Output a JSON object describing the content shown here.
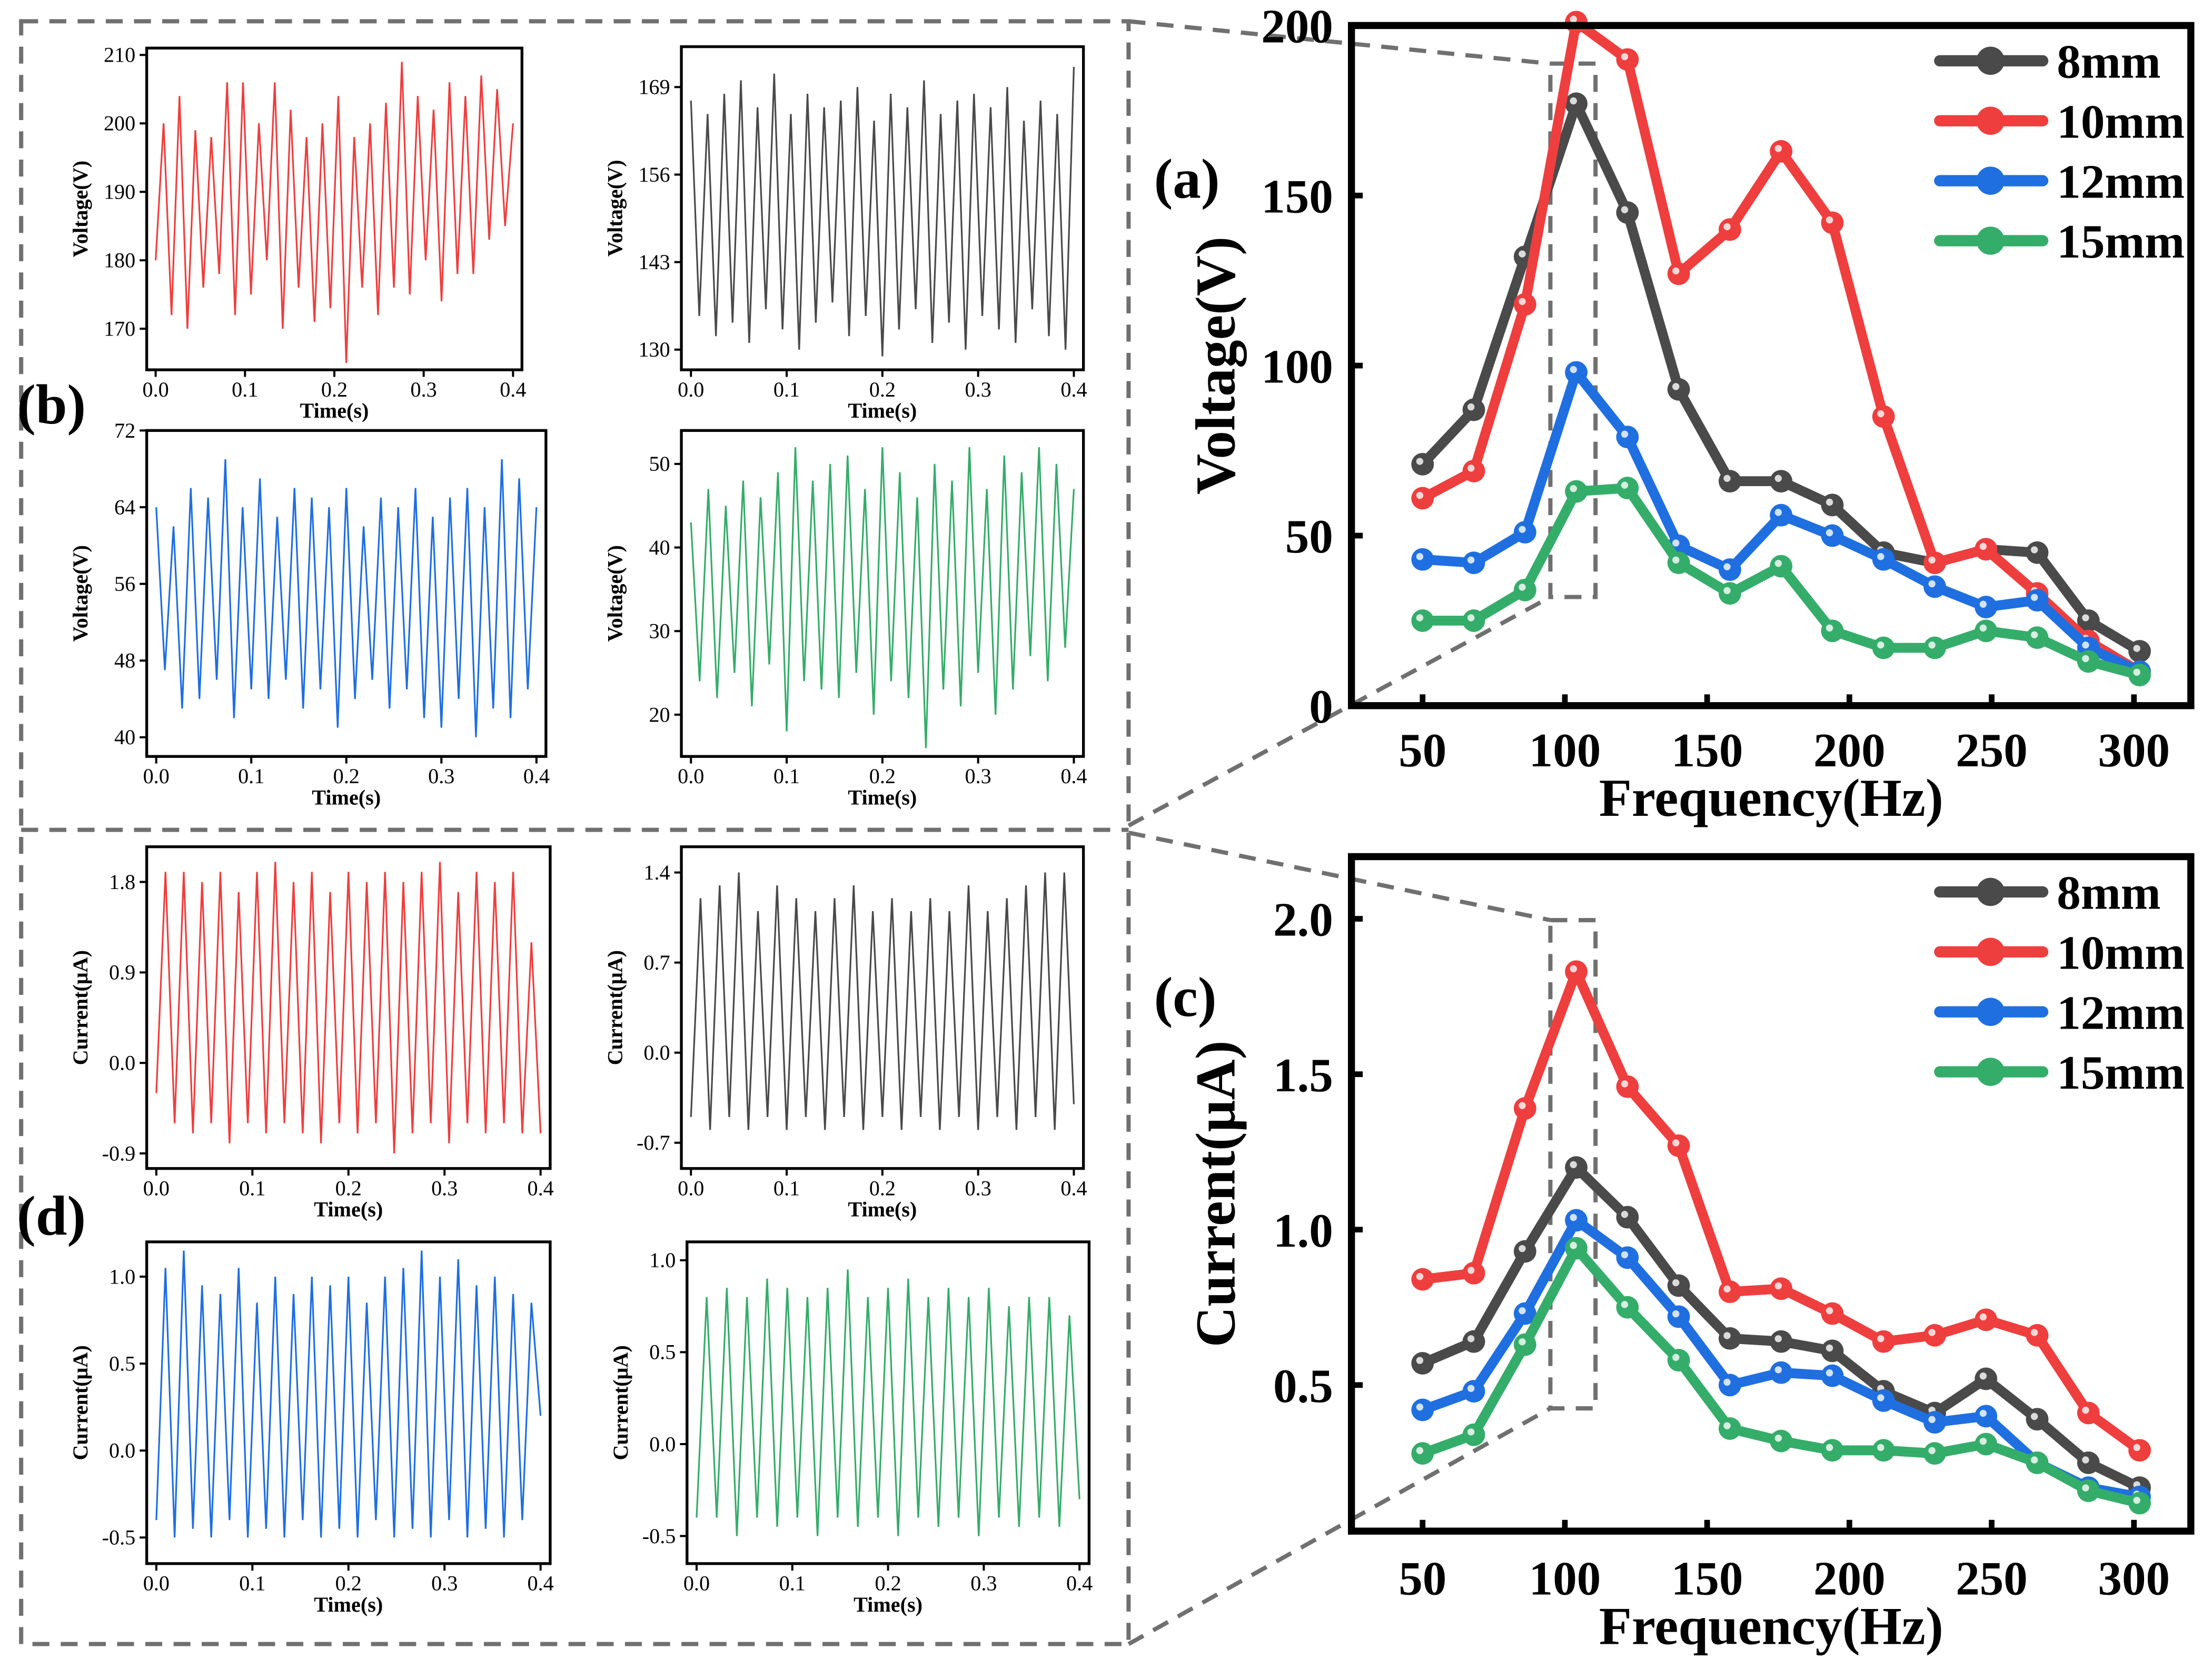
{
  "panel_labels": {
    "a": "(a)",
    "b": "(b)",
    "c": "(c)",
    "d": "(d)"
  },
  "colors": {
    "8mm": "#4a4a4a",
    "10mm": "#ef3e3e",
    "12mm": "#1f6fe0",
    "15mm": "#35ad6a",
    "dashed": "#707070"
  },
  "chart_data": [
    {
      "id": "a",
      "type": "line",
      "xlabel": "Frequency(Hz)",
      "ylabel": "Voltage(V)",
      "xlim": [
        25,
        320
      ],
      "ylim": [
        0,
        200
      ],
      "xticks": [
        50,
        100,
        150,
        200,
        250,
        300
      ],
      "yticks": [
        0,
        50,
        100,
        150,
        200
      ],
      "legend": "top-right",
      "grid": false,
      "x": [
        50,
        68,
        86,
        104,
        122,
        140,
        158,
        176,
        194,
        212,
        230,
        248,
        266,
        284,
        302
      ],
      "series": [
        {
          "name": "8mm",
          "values": [
            71,
            87,
            132,
            177,
            145,
            93,
            66,
            66,
            59,
            45,
            42,
            46,
            45,
            25,
            16
          ]
        },
        {
          "name": "10mm",
          "values": [
            61,
            69,
            118,
            201,
            190,
            127,
            140,
            163,
            142,
            85,
            42,
            46,
            33,
            19,
            10
          ]
        },
        {
          "name": "12mm",
          "values": [
            43,
            42,
            51,
            98,
            79,
            47,
            40,
            56,
            50,
            43,
            35,
            29,
            31,
            17,
            10
          ]
        },
        {
          "name": "15mm",
          "values": [
            25,
            25,
            34,
            63,
            64,
            42,
            33,
            41,
            22,
            17,
            17,
            22,
            20,
            13,
            9
          ]
        }
      ]
    },
    {
      "id": "c",
      "type": "line",
      "xlabel": "Frequency(Hz)",
      "ylabel": "Current(μA)",
      "xlim": [
        25,
        320
      ],
      "ylim": [
        0.03,
        2.2
      ],
      "xticks": [
        50,
        100,
        150,
        200,
        250,
        300
      ],
      "yticks": [
        0.5,
        1.0,
        1.5,
        2.0
      ],
      "legend": "top-right",
      "grid": false,
      "x": [
        50,
        68,
        86,
        104,
        122,
        140,
        158,
        176,
        194,
        212,
        230,
        248,
        266,
        284,
        302
      ],
      "series": [
        {
          "name": "8mm",
          "values": [
            0.57,
            0.64,
            0.93,
            1.2,
            1.04,
            0.82,
            0.65,
            0.64,
            0.61,
            0.48,
            0.41,
            0.52,
            0.39,
            0.25,
            0.17
          ]
        },
        {
          "name": "10mm",
          "values": [
            0.84,
            0.86,
            1.39,
            1.83,
            1.46,
            1.27,
            0.8,
            0.81,
            0.73,
            0.64,
            0.66,
            0.71,
            0.66,
            0.41,
            0.29
          ]
        },
        {
          "name": "12mm",
          "values": [
            0.42,
            0.48,
            0.73,
            1.03,
            0.91,
            0.72,
            0.5,
            0.54,
            0.53,
            0.45,
            0.38,
            0.4,
            0.25,
            0.17,
            0.14
          ]
        },
        {
          "name": "15mm",
          "values": [
            0.28,
            0.34,
            0.63,
            0.94,
            0.75,
            0.58,
            0.36,
            0.32,
            0.29,
            0.29,
            0.28,
            0.31,
            0.25,
            0.16,
            0.12
          ]
        }
      ]
    },
    {
      "id": "b1",
      "type": "line",
      "color": "10mm",
      "xlabel": "Time(s)",
      "ylabel": "Voltage(V)",
      "xlim": [
        -0.01,
        0.41
      ],
      "ylim": [
        164,
        211
      ],
      "xticks": [
        "0.0",
        "0.1",
        "0.2",
        "0.3",
        "0.4"
      ],
      "yticks": [
        "170",
        "180",
        "190",
        "200",
        "210"
      ],
      "values": [
        180,
        200,
        172,
        204,
        170,
        199,
        176,
        198,
        178,
        206,
        172,
        206,
        175,
        200,
        180,
        206,
        170,
        202,
        176,
        198,
        171,
        200,
        173,
        204,
        165,
        198,
        176,
        200,
        172,
        203,
        176,
        209,
        175,
        204,
        180,
        202,
        174,
        206,
        178,
        204,
        178,
        207,
        183,
        205,
        185,
        200
      ]
    },
    {
      "id": "b2",
      "type": "line",
      "color": "8mm",
      "xlabel": "Time(s)",
      "ylabel": "Voltage(V)",
      "xlim": [
        -0.01,
        0.41
      ],
      "ylim": [
        127,
        175
      ],
      "xticks": [
        "0.0",
        "0.1",
        "0.2",
        "0.3",
        "0.4"
      ],
      "yticks": [
        "130",
        "143",
        "156",
        "169"
      ],
      "values": [
        167,
        135,
        165,
        132,
        168,
        134,
        170,
        131,
        166,
        136,
        171,
        133,
        165,
        130,
        168,
        134,
        166,
        137,
        167,
        132,
        169,
        135,
        164,
        129,
        168,
        133,
        166,
        136,
        170,
        131,
        165,
        134,
        167,
        130,
        168,
        135,
        166,
        133,
        169,
        131,
        164,
        136,
        167,
        132,
        165,
        130,
        172
      ]
    },
    {
      "id": "b3",
      "type": "line",
      "color": "12mm",
      "xlabel": "Time(s)",
      "ylabel": "Voltage(V)",
      "xlim": [
        -0.01,
        0.41
      ],
      "ylim": [
        38,
        72
      ],
      "xticks": [
        "0.0",
        "0.1",
        "0.2",
        "0.3",
        "0.4"
      ],
      "yticks": [
        "40",
        "48",
        "56",
        "64",
        "72"
      ],
      "values": [
        64,
        47,
        62,
        43,
        66,
        44,
        65,
        46,
        69,
        42,
        64,
        45,
        67,
        44,
        63,
        46,
        66,
        43,
        65,
        45,
        64,
        41,
        66,
        44,
        62,
        46,
        65,
        43,
        64,
        45,
        66,
        42,
        63,
        41,
        65,
        44,
        66,
        40,
        64,
        43,
        69,
        42,
        67,
        45,
        64
      ]
    },
    {
      "id": "b4",
      "type": "line",
      "color": "15mm",
      "xlabel": "Time(s)",
      "ylabel": "Voltage(V)",
      "xlim": [
        -0.01,
        0.41
      ],
      "ylim": [
        15,
        54
      ],
      "xticks": [
        "0.0",
        "0.1",
        "0.2",
        "0.3",
        "0.4"
      ],
      "yticks": [
        "20",
        "30",
        "40",
        "50"
      ],
      "values": [
        43,
        24,
        47,
        22,
        45,
        25,
        48,
        21,
        46,
        26,
        49,
        18,
        52,
        24,
        48,
        23,
        50,
        22,
        51,
        25,
        47,
        20,
        52,
        24,
        49,
        22,
        46,
        16,
        50,
        23,
        48,
        21,
        52,
        25,
        47,
        20,
        51,
        23,
        49,
        27,
        52,
        24,
        50,
        28,
        47
      ]
    },
    {
      "id": "d1",
      "type": "line",
      "color": "10mm",
      "xlabel": "Time(s)",
      "ylabel": "Current(μA)",
      "xlim": [
        -0.01,
        0.41
      ],
      "ylim": [
        -1.05,
        2.15
      ],
      "xticks": [
        "0.0",
        "0.1",
        "0.2",
        "0.3",
        "0.4"
      ],
      "yticks": [
        "-0.9",
        "0.0",
        "0.9",
        "1.8"
      ],
      "values": [
        -0.3,
        1.9,
        -0.6,
        1.9,
        -0.7,
        1.8,
        -0.6,
        1.9,
        -0.8,
        1.7,
        -0.6,
        1.9,
        -0.7,
        2.0,
        -0.6,
        1.8,
        -0.7,
        1.9,
        -0.8,
        1.7,
        -0.6,
        1.9,
        -0.7,
        1.8,
        -0.6,
        1.9,
        -0.9,
        1.8,
        -0.7,
        1.9,
        -0.6,
        2.0,
        -0.8,
        1.7,
        -0.6,
        1.9,
        -0.7,
        1.8,
        -0.6,
        1.9,
        -0.7,
        1.2,
        -0.7
      ]
    },
    {
      "id": "d2",
      "type": "line",
      "color": "8mm",
      "xlabel": "Time(s)",
      "ylabel": "Current(μA)",
      "xlim": [
        -0.01,
        0.41
      ],
      "ylim": [
        -0.9,
        1.6
      ],
      "xticks": [
        "0.0",
        "0.1",
        "0.2",
        "0.3",
        "0.4"
      ],
      "yticks": [
        "-0.7",
        "0.0",
        "0.7",
        "1.4"
      ],
      "values": [
        -0.5,
        1.2,
        -0.6,
        1.3,
        -0.5,
        1.4,
        -0.6,
        1.1,
        -0.5,
        1.3,
        -0.6,
        1.2,
        -0.5,
        1.1,
        -0.6,
        1.2,
        -0.5,
        1.3,
        -0.6,
        1.1,
        -0.5,
        1.2,
        -0.6,
        1.1,
        -0.5,
        1.2,
        -0.6,
        1.1,
        -0.5,
        1.3,
        -0.6,
        1.1,
        -0.5,
        1.2,
        -0.6,
        1.3,
        -0.5,
        1.4,
        -0.6,
        1.4,
        -0.4
      ]
    },
    {
      "id": "d3",
      "type": "line",
      "color": "12mm",
      "xlabel": "Time(s)",
      "ylabel": "Current(μA)",
      "xlim": [
        -0.01,
        0.41
      ],
      "ylim": [
        -0.65,
        1.2
      ],
      "xticks": [
        "0.0",
        "0.1",
        "0.2",
        "0.3",
        "0.4"
      ],
      "yticks": [
        "-0.5",
        "0.0",
        "0.5",
        "1.0"
      ],
      "values": [
        -0.4,
        1.05,
        -0.5,
        1.15,
        -0.45,
        0.95,
        -0.5,
        0.9,
        -0.4,
        1.05,
        -0.5,
        0.85,
        -0.45,
        1.0,
        -0.5,
        0.9,
        -0.4,
        1.0,
        -0.5,
        0.95,
        -0.45,
        1.0,
        -0.5,
        0.85,
        -0.4,
        1.0,
        -0.5,
        1.05,
        -0.45,
        1.15,
        -0.5,
        1.0,
        -0.4,
        1.1,
        -0.5,
        0.95,
        -0.45,
        1.0,
        -0.5,
        0.9,
        -0.4,
        0.85,
        0.2
      ]
    },
    {
      "id": "d4",
      "type": "line",
      "color": "15mm",
      "xlabel": "Time(s)",
      "ylabel": "Current(μA)",
      "xlim": [
        -0.01,
        0.41
      ],
      "ylim": [
        -0.65,
        1.1
      ],
      "xticks": [
        "0.0",
        "0.1",
        "0.2",
        "0.3",
        "0.4"
      ],
      "yticks": [
        "-0.5",
        "0.0",
        "0.5",
        "1.0"
      ],
      "values": [
        -0.4,
        0.8,
        -0.4,
        0.85,
        -0.5,
        0.8,
        -0.4,
        0.9,
        -0.45,
        0.85,
        -0.4,
        0.8,
        -0.5,
        0.85,
        -0.4,
        0.95,
        -0.45,
        0.8,
        -0.4,
        0.85,
        -0.5,
        0.9,
        -0.4,
        0.8,
        -0.45,
        0.85,
        -0.4,
        0.8,
        -0.5,
        0.85,
        -0.4,
        0.75,
        -0.45,
        0.8,
        -0.4,
        0.8,
        -0.45,
        0.7,
        -0.3
      ]
    }
  ]
}
